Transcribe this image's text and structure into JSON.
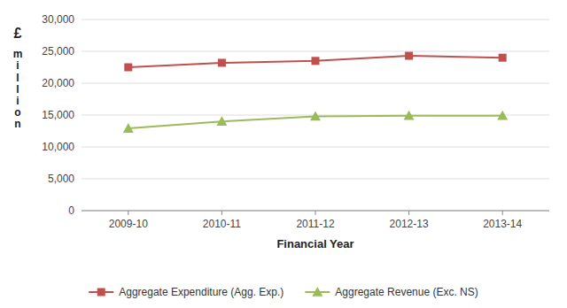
{
  "chart_data": {
    "type": "line",
    "categories": [
      "2009-10",
      "2010-11",
      "2011-12",
      "2012-13",
      "2013-14"
    ],
    "series": [
      {
        "name": "Aggregate Expenditure (Agg. Exp.)",
        "color": "#C0504D",
        "marker": "square",
        "values": [
          22500,
          23200,
          23500,
          24300,
          24000
        ]
      },
      {
        "name": "Aggregate Revenue (Exc. NS)",
        "color": "#9BBB59",
        "marker": "triangle",
        "values": [
          12900,
          14000,
          14800,
          14900,
          14900
        ]
      }
    ],
    "xlabel": "Financial Year",
    "annotations": [
      "£",
      "m\ni\nl\nl\ni\no\nn"
    ],
    "ylim": [
      0,
      30000
    ],
    "yticks": [
      0,
      {
        "value": 5000,
        "label": "5,000"
      },
      {
        "value": 10000,
        "label": "10,000"
      },
      {
        "value": 15000,
        "label": "15,000"
      },
      {
        "value": 20000,
        "label": "20,000"
      },
      {
        "value": 25000,
        "label": "25,000"
      },
      {
        "value": 30000,
        "label": "30,000"
      }
    ],
    "grid": true,
    "legend": "bottom"
  }
}
